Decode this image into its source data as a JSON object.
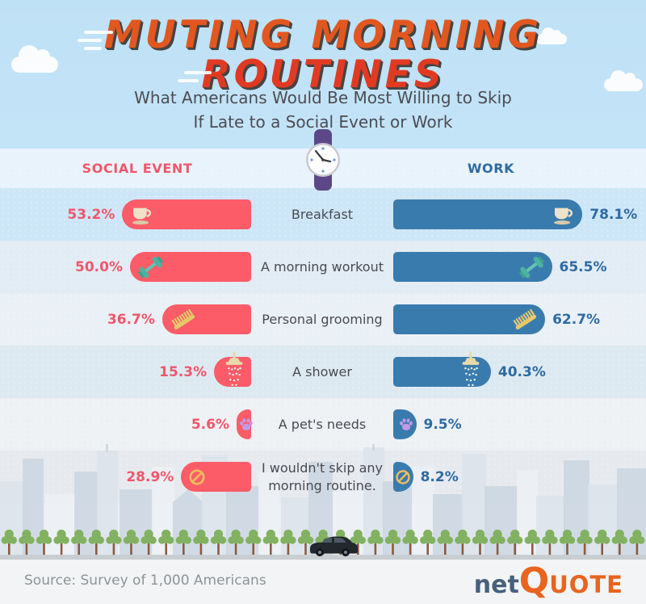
{
  "header": {
    "title_line1": "MUTING MORNING",
    "title_line2": "ROUTINES",
    "subtitle_line1": "What Americans Would Be Most Willing to Skip",
    "subtitle_line2": "If Late to a Social Event or Work"
  },
  "columns": {
    "social": "SOCIAL EVENT",
    "work": "WORK",
    "divider_icon": "wristwatch-icon"
  },
  "chart_data": {
    "type": "bar",
    "orientation": "horizontal-mirrored",
    "title": "Muting Morning Routines",
    "subtitle": "What Americans Would Be Most Willing to Skip If Late to a Social Event or Work",
    "categories": [
      "Breakfast",
      "A morning workout",
      "Personal grooming",
      "A shower",
      "A pet's needs",
      "I wouldn't skip any morning routine."
    ],
    "series": [
      {
        "name": "Social Event",
        "color": "#fb5c68",
        "values": [
          53.2,
          50.0,
          36.7,
          15.3,
          5.6,
          28.9
        ]
      },
      {
        "name": "Work",
        "color": "#3a7bae",
        "values": [
          78.1,
          65.5,
          62.7,
          40.3,
          9.5,
          8.2
        ]
      }
    ],
    "value_suffix": "%",
    "xlim": [
      0,
      100
    ],
    "legend_position": "top",
    "icons": [
      "coffee-cup",
      "dumbbell",
      "comb",
      "shower-head",
      "paw-print",
      "no-symbol"
    ]
  },
  "footer": {
    "source": "Source: Survey of 1,000 Americans",
    "logo_net": "net",
    "logo_q": "Q",
    "logo_uote": "UOTE"
  }
}
